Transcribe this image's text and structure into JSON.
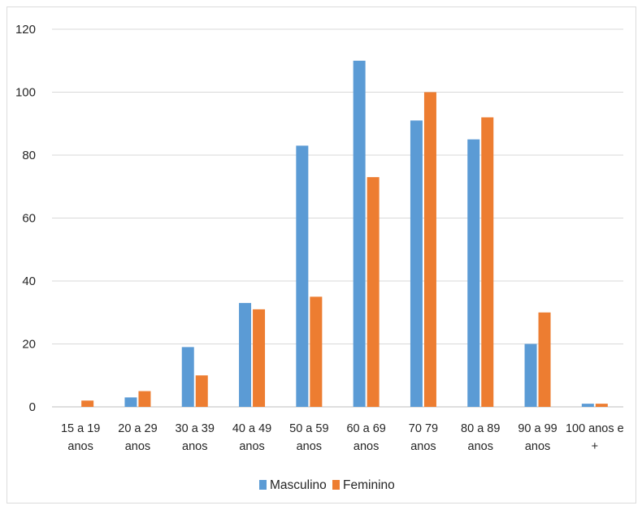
{
  "chart_data": {
    "type": "bar",
    "title": "",
    "xlabel": "",
    "ylabel": "",
    "ylim": [
      0,
      120
    ],
    "yticks": [
      0,
      20,
      40,
      60,
      80,
      100,
      120
    ],
    "grid": true,
    "legend_position": "bottom",
    "categories": [
      [
        "15 a 19",
        "anos"
      ],
      [
        "20 a 29",
        "anos"
      ],
      [
        "30 a 39",
        "anos"
      ],
      [
        "40 a 49",
        "anos"
      ],
      [
        "50 a 59",
        "anos"
      ],
      [
        "60 a 69",
        "anos"
      ],
      [
        "70  79",
        "anos"
      ],
      [
        "80 a 89",
        "anos"
      ],
      [
        "90 a 99",
        "anos"
      ],
      [
        "100 anos e",
        "+"
      ]
    ],
    "series": [
      {
        "name": "Masculino",
        "color": "#5b9bd5",
        "values": [
          0,
          3,
          19,
          33,
          83,
          110,
          91,
          85,
          20,
          1
        ]
      },
      {
        "name": "Feminino",
        "color": "#ed7d31",
        "values": [
          2,
          5,
          10,
          31,
          35,
          73,
          100,
          92,
          30,
          1
        ]
      }
    ]
  }
}
